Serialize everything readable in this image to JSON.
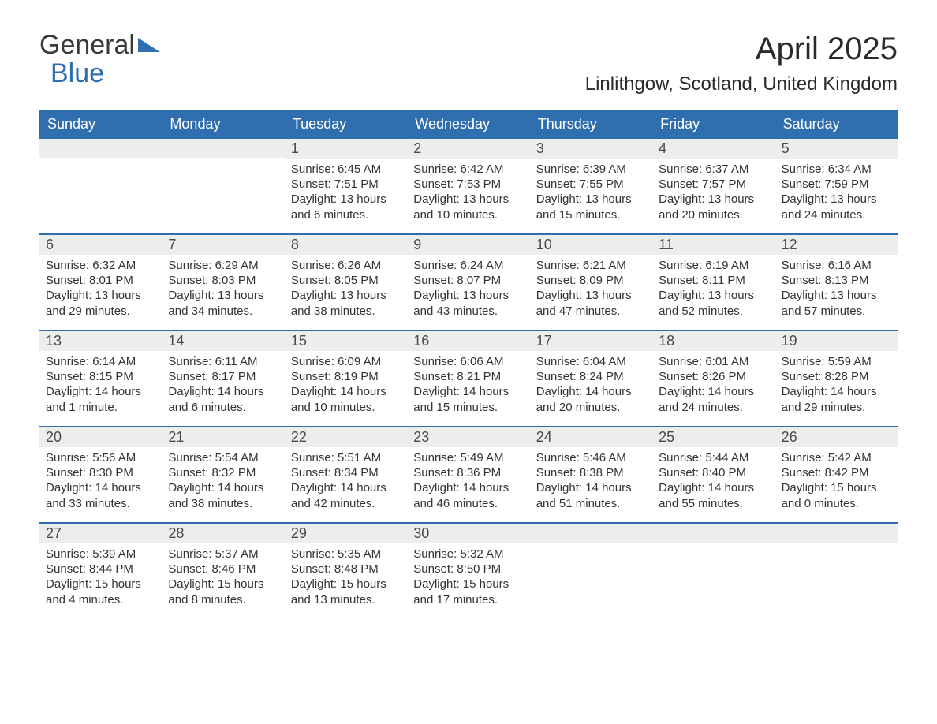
{
  "logo": {
    "word1": "General",
    "word2": "Blue"
  },
  "title": "April 2025",
  "location": "Linlithgow, Scotland, United Kingdom",
  "colors": {
    "header_bg": "#2f6fb0",
    "header_text": "#ffffff",
    "daynum_bg": "#eceded",
    "week_divider": "#2f6fb0",
    "body_text": "#333333",
    "title_text": "#2a2a2a",
    "logo_gray": "#3a3a3a",
    "logo_blue": "#2f6fb0",
    "page_bg": "#ffffff"
  },
  "typography": {
    "title_fontsize": 40,
    "location_fontsize": 24,
    "dow_fontsize": 18,
    "daynum_fontsize": 18,
    "body_fontsize": 15,
    "font_family": "Arial"
  },
  "days_of_week": [
    "Sunday",
    "Monday",
    "Tuesday",
    "Wednesday",
    "Thursday",
    "Friday",
    "Saturday"
  ],
  "labels": {
    "sunrise": "Sunrise:",
    "sunset": "Sunset:",
    "daylight": "Daylight:"
  },
  "weeks": [
    [
      {
        "empty": true
      },
      {
        "empty": true
      },
      {
        "num": "1",
        "sunrise": "6:45 AM",
        "sunset": "7:51 PM",
        "daylight": "13 hours and 6 minutes."
      },
      {
        "num": "2",
        "sunrise": "6:42 AM",
        "sunset": "7:53 PM",
        "daylight": "13 hours and 10 minutes."
      },
      {
        "num": "3",
        "sunrise": "6:39 AM",
        "sunset": "7:55 PM",
        "daylight": "13 hours and 15 minutes."
      },
      {
        "num": "4",
        "sunrise": "6:37 AM",
        "sunset": "7:57 PM",
        "daylight": "13 hours and 20 minutes."
      },
      {
        "num": "5",
        "sunrise": "6:34 AM",
        "sunset": "7:59 PM",
        "daylight": "13 hours and 24 minutes."
      }
    ],
    [
      {
        "num": "6",
        "sunrise": "6:32 AM",
        "sunset": "8:01 PM",
        "daylight": "13 hours and 29 minutes."
      },
      {
        "num": "7",
        "sunrise": "6:29 AM",
        "sunset": "8:03 PM",
        "daylight": "13 hours and 34 minutes."
      },
      {
        "num": "8",
        "sunrise": "6:26 AM",
        "sunset": "8:05 PM",
        "daylight": "13 hours and 38 minutes."
      },
      {
        "num": "9",
        "sunrise": "6:24 AM",
        "sunset": "8:07 PM",
        "daylight": "13 hours and 43 minutes."
      },
      {
        "num": "10",
        "sunrise": "6:21 AM",
        "sunset": "8:09 PM",
        "daylight": "13 hours and 47 minutes."
      },
      {
        "num": "11",
        "sunrise": "6:19 AM",
        "sunset": "8:11 PM",
        "daylight": "13 hours and 52 minutes."
      },
      {
        "num": "12",
        "sunrise": "6:16 AM",
        "sunset": "8:13 PM",
        "daylight": "13 hours and 57 minutes."
      }
    ],
    [
      {
        "num": "13",
        "sunrise": "6:14 AM",
        "sunset": "8:15 PM",
        "daylight": "14 hours and 1 minute."
      },
      {
        "num": "14",
        "sunrise": "6:11 AM",
        "sunset": "8:17 PM",
        "daylight": "14 hours and 6 minutes."
      },
      {
        "num": "15",
        "sunrise": "6:09 AM",
        "sunset": "8:19 PM",
        "daylight": "14 hours and 10 minutes."
      },
      {
        "num": "16",
        "sunrise": "6:06 AM",
        "sunset": "8:21 PM",
        "daylight": "14 hours and 15 minutes."
      },
      {
        "num": "17",
        "sunrise": "6:04 AM",
        "sunset": "8:24 PM",
        "daylight": "14 hours and 20 minutes."
      },
      {
        "num": "18",
        "sunrise": "6:01 AM",
        "sunset": "8:26 PM",
        "daylight": "14 hours and 24 minutes."
      },
      {
        "num": "19",
        "sunrise": "5:59 AM",
        "sunset": "8:28 PM",
        "daylight": "14 hours and 29 minutes."
      }
    ],
    [
      {
        "num": "20",
        "sunrise": "5:56 AM",
        "sunset": "8:30 PM",
        "daylight": "14 hours and 33 minutes."
      },
      {
        "num": "21",
        "sunrise": "5:54 AM",
        "sunset": "8:32 PM",
        "daylight": "14 hours and 38 minutes."
      },
      {
        "num": "22",
        "sunrise": "5:51 AM",
        "sunset": "8:34 PM",
        "daylight": "14 hours and 42 minutes."
      },
      {
        "num": "23",
        "sunrise": "5:49 AM",
        "sunset": "8:36 PM",
        "daylight": "14 hours and 46 minutes."
      },
      {
        "num": "24",
        "sunrise": "5:46 AM",
        "sunset": "8:38 PM",
        "daylight": "14 hours and 51 minutes."
      },
      {
        "num": "25",
        "sunrise": "5:44 AM",
        "sunset": "8:40 PM",
        "daylight": "14 hours and 55 minutes."
      },
      {
        "num": "26",
        "sunrise": "5:42 AM",
        "sunset": "8:42 PM",
        "daylight": "15 hours and 0 minutes."
      }
    ],
    [
      {
        "num": "27",
        "sunrise": "5:39 AM",
        "sunset": "8:44 PM",
        "daylight": "15 hours and 4 minutes."
      },
      {
        "num": "28",
        "sunrise": "5:37 AM",
        "sunset": "8:46 PM",
        "daylight": "15 hours and 8 minutes."
      },
      {
        "num": "29",
        "sunrise": "5:35 AM",
        "sunset": "8:48 PM",
        "daylight": "15 hours and 13 minutes."
      },
      {
        "num": "30",
        "sunrise": "5:32 AM",
        "sunset": "8:50 PM",
        "daylight": "15 hours and 17 minutes."
      },
      {
        "empty": true
      },
      {
        "empty": true
      },
      {
        "empty": true
      }
    ]
  ]
}
